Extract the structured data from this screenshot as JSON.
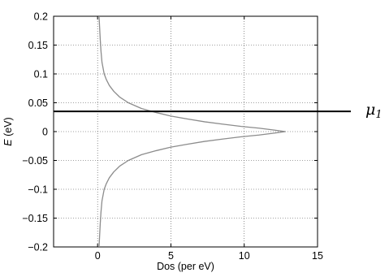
{
  "chart_data": {
    "type": "line",
    "title": "",
    "xlabel": "Dos (per eV)",
    "ylabel_italic": "E",
    "ylabel_rest": " (eV)",
    "xlim": [
      -3,
      15
    ],
    "ylim": [
      -0.2,
      0.2
    ],
    "x_ticks": [
      0,
      5,
      10,
      15
    ],
    "y_ticks": [
      -0.2,
      -0.15,
      -0.1,
      -0.05,
      0,
      0.05,
      0.1,
      0.15,
      0.2
    ],
    "x_tick_labels": [
      "0",
      "5",
      "10",
      "15"
    ],
    "y_tick_labels": [
      "−0.2",
      "−0.15",
      "−0.1",
      "−0.05",
      "0",
      "0.05",
      "0.1",
      "0.15",
      "0.2"
    ],
    "grid": true,
    "series": [
      {
        "color": "#8c8c8c",
        "points": [
          [
            0.1,
            0.2
          ],
          [
            0.14,
            0.18
          ],
          [
            0.18,
            0.16
          ],
          [
            0.23,
            0.14
          ],
          [
            0.3,
            0.12
          ],
          [
            0.45,
            0.1
          ],
          [
            0.6,
            0.09
          ],
          [
            0.8,
            0.08
          ],
          [
            1.1,
            0.07
          ],
          [
            1.5,
            0.06
          ],
          [
            2.1,
            0.05
          ],
          [
            3.0,
            0.04
          ],
          [
            4.0,
            0.033
          ],
          [
            5.0,
            0.027
          ],
          [
            6.1,
            0.022
          ],
          [
            7.3,
            0.017
          ],
          [
            8.5,
            0.013
          ],
          [
            9.8,
            0.009
          ],
          [
            11.0,
            0.006
          ],
          [
            12.1,
            0.0025
          ],
          [
            12.8,
            0.0
          ],
          [
            12.1,
            -0.0025
          ],
          [
            11.0,
            -0.006
          ],
          [
            9.8,
            -0.009
          ],
          [
            8.5,
            -0.013
          ],
          [
            7.3,
            -0.017
          ],
          [
            6.1,
            -0.022
          ],
          [
            5.0,
            -0.027
          ],
          [
            4.0,
            -0.033
          ],
          [
            3.0,
            -0.04
          ],
          [
            2.1,
            -0.05
          ],
          [
            1.5,
            -0.06
          ],
          [
            1.1,
            -0.07
          ],
          [
            0.8,
            -0.08
          ],
          [
            0.6,
            -0.09
          ],
          [
            0.45,
            -0.1
          ],
          [
            0.3,
            -0.12
          ],
          [
            0.23,
            -0.14
          ],
          [
            0.18,
            -0.16
          ],
          [
            0.14,
            -0.18
          ],
          [
            0.1,
            -0.2
          ]
        ]
      }
    ],
    "reference_line": {
      "y": 0.035,
      "label": "μ",
      "subscript": "1",
      "color": "#000000"
    }
  }
}
